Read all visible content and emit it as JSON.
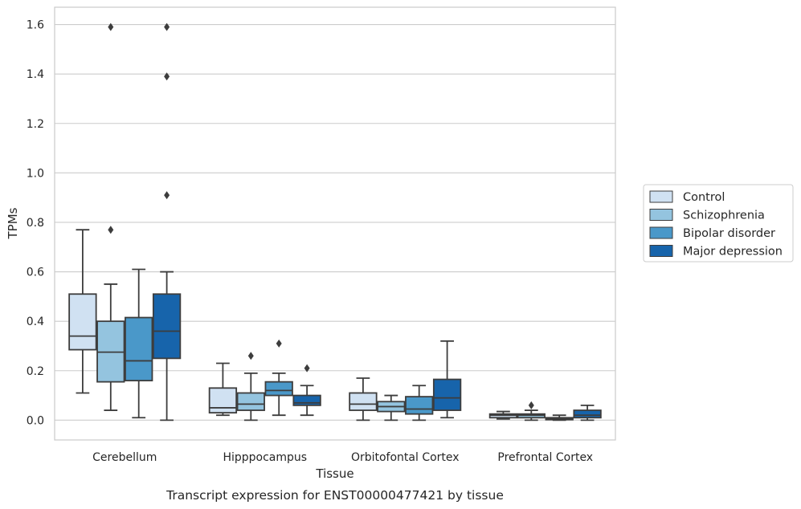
{
  "chart_data": {
    "type": "box",
    "xlabel": "Tissue",
    "ylabel": "TPMs",
    "caption": "Transcript expression for ENST00000477421 by tissue",
    "ylim": [
      -0.08,
      1.67
    ],
    "yticks": [
      "0.0",
      "0.2",
      "0.4",
      "0.6",
      "0.8",
      "1.0",
      "1.2",
      "1.4",
      "1.6"
    ],
    "ytick_values": [
      0.0,
      0.2,
      0.4,
      0.6,
      0.8,
      1.0,
      1.2,
      1.4,
      1.6
    ],
    "grid": "horizontal",
    "legend_position": "right",
    "categories": [
      "Cerebellum",
      "Hipppocampus",
      "Orbitofontal Cortex",
      "Prefrontal Cortex"
    ],
    "series": [
      {
        "name": "Control",
        "color": "#d0e1f2",
        "boxes": [
          {
            "min": 0.11,
            "q1": 0.285,
            "median": 0.34,
            "q3": 0.51,
            "max": 0.77,
            "outliers": []
          },
          {
            "min": 0.02,
            "q1": 0.03,
            "median": 0.05,
            "q3": 0.13,
            "max": 0.23,
            "outliers": []
          },
          {
            "min": 0.0,
            "q1": 0.04,
            "median": 0.065,
            "q3": 0.11,
            "max": 0.17,
            "outliers": []
          },
          {
            "min": 0.005,
            "q1": 0.01,
            "median": 0.02,
            "q3": 0.025,
            "max": 0.035,
            "outliers": []
          }
        ]
      },
      {
        "name": "Schizophrenia",
        "color": "#94c4df",
        "boxes": [
          {
            "min": 0.04,
            "q1": 0.155,
            "median": 0.275,
            "q3": 0.4,
            "max": 0.55,
            "outliers": [
              0.77,
              1.59
            ]
          },
          {
            "min": 0.0,
            "q1": 0.04,
            "median": 0.065,
            "q3": 0.11,
            "max": 0.19,
            "outliers": [
              0.26
            ]
          },
          {
            "min": 0.0,
            "q1": 0.035,
            "median": 0.055,
            "q3": 0.075,
            "max": 0.1,
            "outliers": []
          },
          {
            "min": 0.0,
            "q1": 0.01,
            "median": 0.02,
            "q3": 0.025,
            "max": 0.04,
            "outliers": [
              0.06
            ]
          }
        ]
      },
      {
        "name": "Bipolar disorder",
        "color": "#4a98c9",
        "boxes": [
          {
            "min": 0.01,
            "q1": 0.16,
            "median": 0.24,
            "q3": 0.415,
            "max": 0.61,
            "outliers": []
          },
          {
            "min": 0.02,
            "q1": 0.1,
            "median": 0.12,
            "q3": 0.155,
            "max": 0.19,
            "outliers": [
              0.31
            ]
          },
          {
            "min": 0.0,
            "q1": 0.025,
            "median": 0.045,
            "q3": 0.095,
            "max": 0.14,
            "outliers": []
          },
          {
            "min": 0.0,
            "q1": 0.002,
            "median": 0.005,
            "q3": 0.01,
            "max": 0.02,
            "outliers": []
          }
        ]
      },
      {
        "name": "Major depression",
        "color": "#1764ab",
        "boxes": [
          {
            "min": 0.0,
            "q1": 0.25,
            "median": 0.36,
            "q3": 0.51,
            "max": 0.6,
            "outliers": [
              0.91,
              1.39,
              1.59
            ]
          },
          {
            "min": 0.02,
            "q1": 0.06,
            "median": 0.07,
            "q3": 0.1,
            "max": 0.14,
            "outliers": [
              0.21
            ]
          },
          {
            "min": 0.01,
            "q1": 0.04,
            "median": 0.09,
            "q3": 0.165,
            "max": 0.32,
            "outliers": []
          },
          {
            "min": 0.0,
            "q1": 0.01,
            "median": 0.02,
            "q3": 0.04,
            "max": 0.06,
            "outliers": []
          }
        ]
      }
    ]
  }
}
